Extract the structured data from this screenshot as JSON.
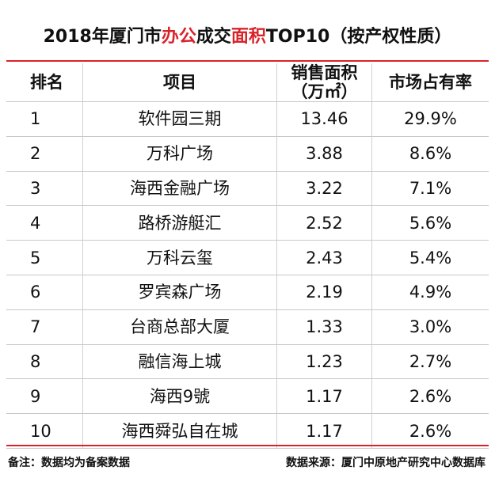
{
  "title": {
    "parts": [
      {
        "text": "2018年厦门市",
        "color": "#111111"
      },
      {
        "text": "办公",
        "color": "#d9232a"
      },
      {
        "text": "成交",
        "color": "#111111"
      },
      {
        "text": "面积",
        "color": "#d9232a"
      },
      {
        "text": "TOP10（按产权性质）",
        "color": "#111111"
      }
    ]
  },
  "table": {
    "header": [
      {
        "lines": [
          "排名"
        ]
      },
      {
        "lines": [
          "项目"
        ]
      },
      {
        "lines": [
          "销售面积",
          "（万㎡）"
        ]
      },
      {
        "lines": [
          "市场占有率"
        ]
      }
    ],
    "rows": [
      [
        "1",
        "软件园三期",
        "13.46",
        "29.9%"
      ],
      [
        "2",
        "万科广场",
        "3.88",
        "8.6%"
      ],
      [
        "3",
        "海西金融广场",
        "3.22",
        "7.1%"
      ],
      [
        "4",
        "路桥游艇汇",
        "2.52",
        "5.6%"
      ],
      [
        "5",
        "万科云玺",
        "2.43",
        "5.4%"
      ],
      [
        "6",
        "罗宾森广场",
        "2.19",
        "4.9%"
      ],
      [
        "7",
        "台商总部大厦",
        "1.33",
        "3.0%"
      ],
      [
        "8",
        "融信海上城",
        "1.23",
        "2.7%"
      ],
      [
        "9",
        "海西9號",
        "1.17",
        "2.6%"
      ],
      [
        "10",
        "海西舜弘自在城",
        "1.17",
        "2.6%"
      ]
    ]
  },
  "footer": {
    "note": "备注：数据均为备案数据",
    "source": "数据来源：厦门中原地产研究中心数据库"
  }
}
